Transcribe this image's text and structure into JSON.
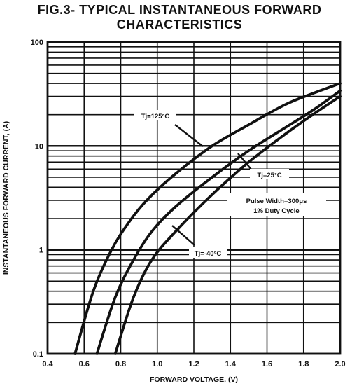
{
  "figure": {
    "title_line1": "FIG.3- TYPICAL INSTANTANEOUS FORWARD",
    "title_line2": "CHARACTERISTICS"
  },
  "chart_data": {
    "type": "line",
    "title": "FIG.3- TYPICAL INSTANTANEOUS FORWARD CHARACTERISTICS",
    "xlabel": "FORWARD VOLTAGE, (V)",
    "ylabel": "INSTANTANEOUS FORWARD CURRENT, (A)",
    "xlim": [
      0.4,
      2.0
    ],
    "ylim": [
      0.1,
      100
    ],
    "y_scale": "log",
    "grid": true,
    "x_ticks": [
      "0.4",
      "0.6",
      "0.8",
      "1.0",
      "1.2",
      "1.4",
      "1.6",
      "1.8",
      "2.0"
    ],
    "y_ticks": [
      "0.1",
      "1",
      "10",
      "100"
    ],
    "series": [
      {
        "name": "Tj=125°C",
        "x": [
          0.55,
          0.65,
          0.75,
          0.85,
          0.95,
          1.1,
          1.3,
          1.5,
          1.7,
          1.85,
          2.0
        ],
        "y": [
          0.1,
          0.4,
          1.0,
          1.9,
          3.1,
          5.4,
          10,
          16,
          25,
          32,
          40
        ]
      },
      {
        "name": "Tj=25°C",
        "x": [
          0.67,
          0.77,
          0.87,
          0.97,
          1.1,
          1.3,
          1.5,
          1.7,
          1.85,
          2.0
        ],
        "y": [
          0.1,
          0.35,
          0.8,
          1.5,
          2.6,
          5.0,
          9.0,
          15,
          22,
          34
        ]
      },
      {
        "name": "Tj=-40°C",
        "x": [
          0.77,
          0.87,
          0.97,
          1.1,
          1.3,
          1.5,
          1.7,
          1.85,
          2.0
        ],
        "y": [
          0.1,
          0.35,
          0.8,
          1.5,
          3.4,
          7.0,
          13,
          20,
          30
        ]
      }
    ],
    "annotations": [
      {
        "text": "Tj=125°C",
        "series": "Tj=125°C"
      },
      {
        "text": "Tj=25°C",
        "series": "Tj=25°C"
      },
      {
        "text": "Tj=-40°C",
        "series": "Tj=-40°C"
      },
      {
        "text": "Pulse Width=300μs",
        "series": ""
      },
      {
        "text": "1% Duty Cycle",
        "series": ""
      }
    ]
  }
}
